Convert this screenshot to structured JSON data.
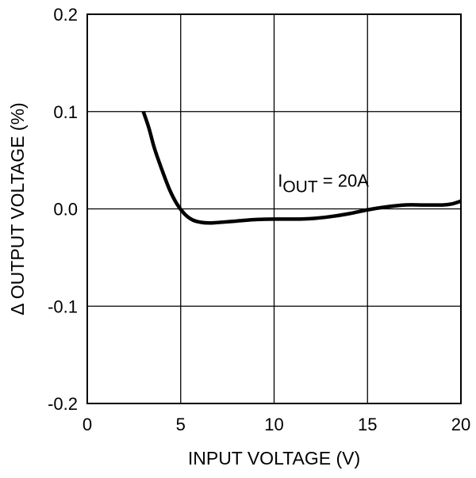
{
  "chart_data": {
    "type": "line",
    "xlabel": "INPUT VOLTAGE (V)",
    "ylabel": "Δ OUTPUT VOLTAGE (%)",
    "xlim": [
      0,
      20
    ],
    "ylim": [
      -0.2,
      0.2
    ],
    "xticks": [
      0,
      5,
      10,
      15,
      20
    ],
    "xtick_labels": [
      "0",
      "5",
      "10",
      "15",
      "20"
    ],
    "yticks": [
      0.2,
      0.1,
      0.0,
      -0.1,
      -0.2
    ],
    "ytick_labels": [
      "0.2",
      "0.1",
      "0.0",
      "-0.1",
      "-0.2"
    ],
    "grid": true,
    "annotation": {
      "main": "I",
      "subscript": "OUT",
      "rest": " = 20A",
      "x": 10.2,
      "y": 0.023
    },
    "series": [
      {
        "color": "#000000",
        "x": [
          3.0,
          3.3,
          3.6,
          4.0,
          4.4,
          4.8,
          5.2,
          5.6,
          6.0,
          6.5,
          7.0,
          8.0,
          9.0,
          10.0,
          11.0,
          12.0,
          13.0,
          14.0,
          15.0,
          16.0,
          17.0,
          18.0,
          19.0,
          19.5,
          20.0
        ],
        "y": [
          0.1,
          0.083,
          0.062,
          0.04,
          0.02,
          0.005,
          -0.005,
          -0.011,
          -0.0135,
          -0.0145,
          -0.014,
          -0.0125,
          -0.011,
          -0.0105,
          -0.0105,
          -0.01,
          -0.008,
          -0.005,
          -0.001,
          0.002,
          0.004,
          0.004,
          0.004,
          0.005,
          0.008
        ]
      }
    ]
  }
}
